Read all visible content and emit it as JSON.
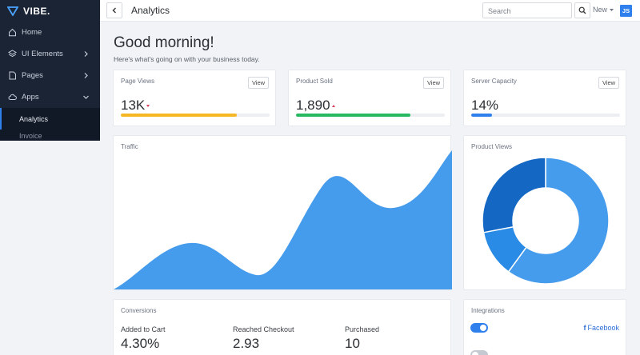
{
  "brand": {
    "name": "VIBE."
  },
  "sidebar": {
    "items": [
      {
        "label": "Home",
        "icon": "home-icon"
      },
      {
        "label": "UI Elements",
        "icon": "layers-icon"
      },
      {
        "label": "Pages",
        "icon": "page-icon"
      },
      {
        "label": "Apps",
        "icon": "cloud-icon"
      }
    ],
    "sub_items": [
      {
        "label": "Analytics",
        "active": true
      },
      {
        "label": "Invoice",
        "active": false
      }
    ]
  },
  "topbar": {
    "title": "Analytics",
    "search_placeholder": "Search",
    "new_label": "New",
    "avatar_initials": "JS"
  },
  "greeting": {
    "title": "Good morning!",
    "subtitle": "Here's what's going on with your business today."
  },
  "stats": [
    {
      "label": "Page Views",
      "value": "13K",
      "trend": "down",
      "progress": 0.78,
      "color": "#f5b824",
      "button": "View"
    },
    {
      "label": "Product Sold",
      "value": "1,890",
      "trend": "up",
      "progress": 0.77,
      "color": "#27b862",
      "button": "View"
    },
    {
      "label": "Server Capacity",
      "value": "14%",
      "trend": "none",
      "progress": 0.14,
      "color": "#2f80ed",
      "button": "View"
    }
  ],
  "traffic": {
    "label": "Traffic",
    "color": "#459bec"
  },
  "product_views": {
    "label": "Product Views",
    "slices": [
      0.6,
      0.12,
      0.28
    ],
    "colors": [
      "#459bec",
      "#2a8be6",
      "#1468c4"
    ]
  },
  "conversions": {
    "label": "Conversions",
    "items": [
      {
        "label": "Added to Cart",
        "value": "4.30%"
      },
      {
        "label": "Reached Checkout",
        "value": "2.93"
      },
      {
        "label": "Purchased",
        "value": "10"
      }
    ]
  },
  "integrations": {
    "label": "Integrations",
    "items": [
      {
        "label": "Facebook",
        "enabled": true
      }
    ]
  }
}
